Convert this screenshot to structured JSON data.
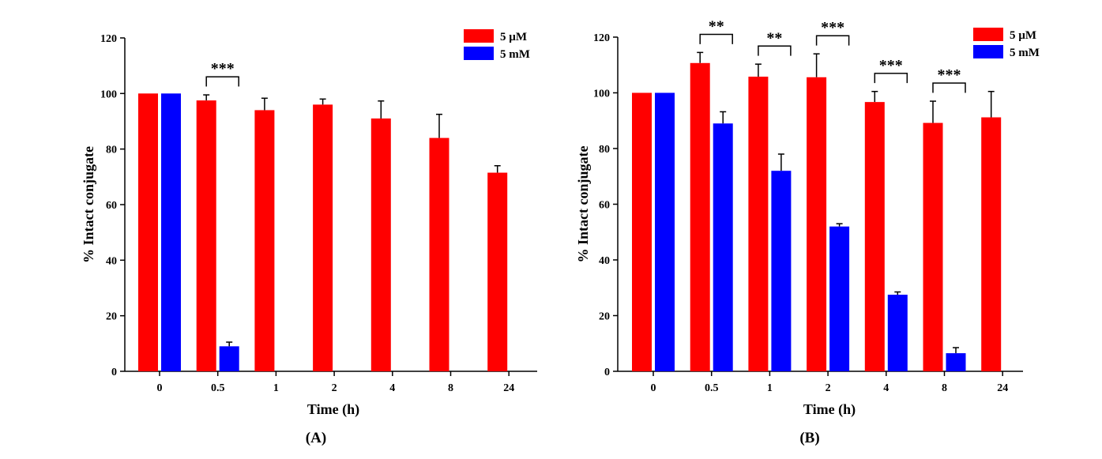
{
  "chart_data": [
    {
      "type": "bar",
      "panel_label": "(A)",
      "xlabel": "Time (h)",
      "ylabel": "% Intact conjugate",
      "ylim": [
        0,
        120
      ],
      "yticks": [
        "0",
        "20",
        "40",
        "60",
        "80",
        "100",
        "120"
      ],
      "categories": [
        "0",
        "0.5",
        "1",
        "2",
        "4",
        "8",
        "24"
      ],
      "legend_position": "top-right",
      "series": [
        {
          "name": "5 µM",
          "color": "#ff0000",
          "values": [
            100,
            97.5,
            94,
            96,
            91,
            84,
            71.5
          ],
          "error_top": [
            100,
            99.5,
            98.3,
            98,
            97.3,
            92.5,
            74
          ]
        },
        {
          "name": "5 mM",
          "color": "#0000ff",
          "values": [
            100,
            9,
            null,
            null,
            null,
            null,
            null
          ],
          "error_top": [
            100,
            10.5,
            null,
            null,
            null,
            null,
            null
          ]
        }
      ],
      "significance": [
        {
          "category": "0.5",
          "label": "***"
        }
      ]
    },
    {
      "type": "bar",
      "panel_label": "(B)",
      "xlabel": "Time (h)",
      "ylabel": "% Intact conjugate",
      "ylim": [
        0,
        120
      ],
      "yticks": [
        "0",
        "20",
        "40",
        "60",
        "80",
        "100",
        "120"
      ],
      "categories": [
        "0",
        "0.5",
        "1",
        "2",
        "4",
        "8",
        "24"
      ],
      "legend_position": "top-right",
      "series": [
        {
          "name": "5 µM",
          "color": "#ff0000",
          "values": [
            100,
            110.7,
            105.8,
            105.6,
            96.7,
            89.2,
            91.2
          ],
          "error_top": [
            100,
            114.5,
            110.3,
            114,
            100.5,
            97,
            100.5
          ]
        },
        {
          "name": "5 mM",
          "color": "#0000ff",
          "values": [
            100,
            89,
            72,
            52,
            27.5,
            6.5,
            null
          ],
          "error_top": [
            100,
            93.2,
            78,
            53,
            28.5,
            8.5,
            null
          ]
        }
      ],
      "significance": [
        {
          "category": "0.5",
          "label": "**"
        },
        {
          "category": "1",
          "label": "**"
        },
        {
          "category": "2",
          "label": "***"
        },
        {
          "category": "4",
          "label": "***"
        },
        {
          "category": "8",
          "label": "***"
        }
      ]
    }
  ]
}
